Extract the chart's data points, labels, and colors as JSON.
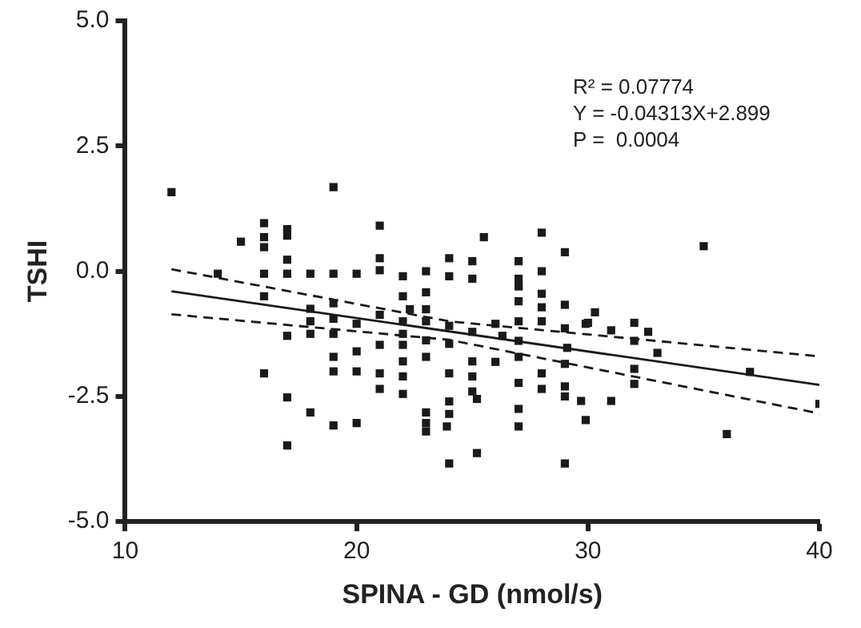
{
  "chart_data": {
    "type": "scatter",
    "xlabel": "SPINA - GD (nmol/s)",
    "ylabel": "TSHI",
    "annotations": [
      "R² = 0.07774",
      "Y = -0.04313X+2.899",
      "P =  0.0004"
    ],
    "xlim": [
      10,
      40
    ],
    "xticks": [
      10,
      20,
      30,
      40
    ],
    "ylim": [
      -5,
      5
    ],
    "yticks": [
      {
        "value": 5,
        "label": "5.0"
      },
      {
        "value": 2.5,
        "label": "2.5"
      },
      {
        "value": 0,
        "label": "0.0"
      },
      {
        "value": -2.5,
        "label": "-2.5"
      },
      {
        "value": -5,
        "label": "-5.0"
      }
    ],
    "grid": false,
    "legend": false,
    "series": [
      {
        "type": "scatter",
        "color": "#1a1a1a",
        "marker": "square",
        "x": [
          12,
          19,
          16,
          17,
          15,
          16,
          16,
          17,
          17,
          14,
          16,
          17,
          18,
          19,
          20,
          16,
          19,
          18,
          18,
          18,
          19,
          19,
          20,
          17,
          19,
          20,
          20,
          19,
          16,
          17,
          18,
          19,
          20,
          17,
          21,
          21,
          21,
          21,
          21,
          21,
          21,
          22,
          22,
          22.3,
          22,
          22,
          22,
          22,
          22,
          22,
          23,
          23,
          23,
          23,
          23,
          23,
          23,
          23,
          23,
          24,
          24,
          24,
          24,
          24,
          24,
          24,
          23.9,
          24,
          25,
          25,
          25,
          25,
          25,
          25,
          25.2,
          25.2,
          25.5,
          26,
          26,
          26.3,
          27,
          27,
          27,
          27,
          27,
          27,
          27,
          27,
          27,
          27,
          27,
          28,
          28,
          28,
          28,
          28,
          28,
          28,
          29,
          29,
          29,
          29.1,
          29,
          29,
          29,
          29,
          29.9,
          29.7,
          29.9,
          35,
          30.3,
          30,
          31,
          32,
          32,
          32.6,
          33,
          32,
          32,
          31,
          37,
          40,
          36
        ],
        "values": [
          1.58,
          1.68,
          0.96,
          0.84,
          0.59,
          0.68,
          0.48,
          0.71,
          0.23,
          -0.05,
          -0.05,
          -0.05,
          -0.05,
          -0.05,
          -0.05,
          -0.5,
          -0.64,
          -0.75,
          -1.0,
          -1.25,
          -0.95,
          -1.25,
          -1.05,
          -1.29,
          -1.71,
          -1.6,
          -2.0,
          -2.0,
          -2.04,
          -2.52,
          -2.82,
          -3.08,
          -3.03,
          -3.48,
          0.91,
          0.26,
          0.02,
          -0.87,
          -1.47,
          -2.04,
          -2.35,
          -0.1,
          -0.5,
          -0.76,
          -1.0,
          -1.25,
          -1.47,
          -1.8,
          -2.1,
          -2.45,
          0.0,
          -0.42,
          -0.76,
          -1.0,
          -1.38,
          -1.71,
          -2.82,
          -3.03,
          -3.2,
          0.26,
          -0.1,
          -1.09,
          -1.45,
          -2.04,
          -2.6,
          -2.85,
          -3.1,
          -3.84,
          0.2,
          -0.15,
          -1.21,
          -1.8,
          -2.1,
          -2.4,
          -2.55,
          -3.63,
          0.68,
          -1.05,
          -1.81,
          -1.29,
          0.2,
          -0.15,
          -0.3,
          -0.6,
          -1.0,
          -1.39,
          -1.71,
          -2.23,
          -2.75,
          -3.1,
          -0.3,
          0.77,
          0.0,
          -0.45,
          -0.72,
          -1.0,
          -2.04,
          -2.35,
          0.38,
          -0.67,
          -1.14,
          -1.53,
          -1.85,
          -2.3,
          -2.5,
          -3.84,
          -1.05,
          -2.59,
          -2.97,
          0.5,
          -0.82,
          -1.03,
          -1.18,
          -1.03,
          -1.39,
          -1.21,
          -1.63,
          -1.95,
          -2.25,
          -2.59,
          -2.01,
          -2.65,
          -3.25
        ]
      },
      {
        "type": "line",
        "color": "#1a1a1a",
        "marker": "none",
        "line_style": "solid",
        "x": [
          12,
          40
        ],
        "values": [
          -0.4,
          -2.27
        ]
      },
      {
        "type": "line",
        "color": "#1a1a1a",
        "marker": "none",
        "line_style": "dashed",
        "x": [
          12,
          24,
          40
        ],
        "values": [
          0.04,
          -1.0,
          -1.7
        ]
      },
      {
        "type": "line",
        "color": "#1a1a1a",
        "marker": "none",
        "line_style": "dashed",
        "x": [
          12,
          24,
          40
        ],
        "values": [
          -0.86,
          -1.37,
          -2.84
        ]
      }
    ]
  }
}
